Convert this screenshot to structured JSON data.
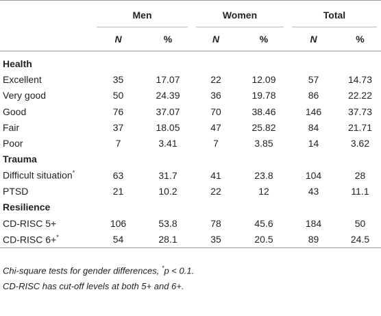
{
  "table": {
    "groups": [
      "Men",
      "Women",
      "Total"
    ],
    "subheaders": [
      "N",
      "%",
      "N",
      "%",
      "N",
      "%"
    ],
    "sections": [
      {
        "title": "Health",
        "rows": [
          {
            "label": "Excellent",
            "cells": [
              35,
              17.07,
              22,
              12.09,
              57,
              14.73
            ]
          },
          {
            "label": "Very good",
            "cells": [
              50,
              24.39,
              36,
              19.78,
              86,
              22.22
            ]
          },
          {
            "label": "Good",
            "cells": [
              76,
              37.07,
              70,
              38.46,
              146,
              37.73
            ]
          },
          {
            "label": "Fair",
            "cells": [
              37,
              18.05,
              47,
              25.82,
              84,
              21.71
            ]
          },
          {
            "label": "Poor",
            "cells": [
              7,
              3.41,
              7,
              3.85,
              14,
              3.62
            ]
          }
        ]
      },
      {
        "title": "Trauma",
        "rows": [
          {
            "label": "Difficult situation",
            "mark": "*",
            "cells": [
              63,
              31.7,
              41,
              23.8,
              104,
              28
            ]
          },
          {
            "label": "PTSD",
            "cells": [
              21,
              10.2,
              22,
              12,
              43,
              11.1
            ]
          }
        ]
      },
      {
        "title": "Resilience",
        "rows": [
          {
            "label": "CD-RISC 5+",
            "cells": [
              106,
              53.8,
              78,
              45.6,
              184,
              50
            ]
          },
          {
            "label": "CD-RISC 6+",
            "mark": "*",
            "cells": [
              54,
              28.1,
              35,
              20.5,
              89,
              24.5
            ]
          }
        ]
      }
    ],
    "footnotes": [
      {
        "parts": [
          "Chi-square tests for gender differences, ",
          "*",
          "p < 0.1."
        ]
      },
      {
        "parts": [
          "CD-RISC has cut-off levels at both 5+ and 6+."
        ]
      }
    ]
  }
}
